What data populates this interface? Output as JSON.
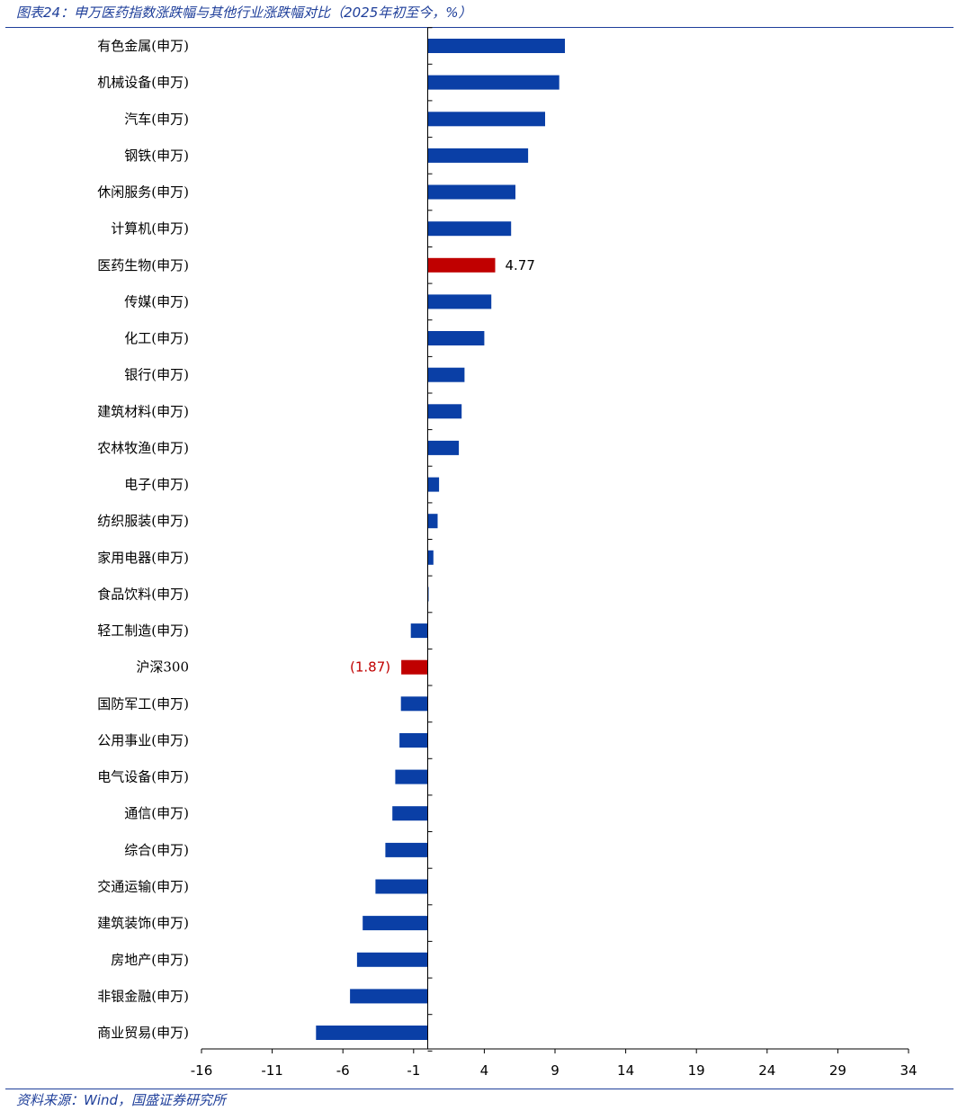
{
  "header": {
    "title": "图表24：申万医药指数涨跌幅与其他行业涨跌幅对比（2025年初至今，%）"
  },
  "footer": {
    "source": "资料来源：Wind，国盛证券研究所"
  },
  "colors": {
    "default_bar": "#0a3fa6",
    "highlight_bar": "#c00000",
    "frame": "#1f3f9a",
    "axis": "#000000"
  },
  "chart_data": {
    "type": "bar",
    "orientation": "horizontal",
    "categories": [
      "有色金属(申万)",
      "机械设备(申万)",
      "汽车(申万)",
      "钢铁(申万)",
      "休闲服务(申万)",
      "计算机(申万)",
      "医药生物(申万)",
      "传媒(申万)",
      "化工(申万)",
      "银行(申万)",
      "建筑材料(申万)",
      "农林牧渔(申万)",
      "电子(申万)",
      "纺织服装(申万)",
      "家用电器(申万)",
      "食品饮料(申万)",
      "轻工制造(申万)",
      "沪深300",
      "国防军工(申万)",
      "公用事业(申万)",
      "电气设备(申万)",
      "通信(申万)",
      "综合(申万)",
      "交通运输(申万)",
      "建筑装饰(申万)",
      "房地产(申万)",
      "非银金融(申万)",
      "商业贸易(申万)"
    ],
    "values": [
      9.7,
      9.3,
      8.3,
      7.1,
      6.2,
      5.9,
      4.77,
      4.5,
      4.0,
      2.6,
      2.4,
      2.2,
      0.8,
      0.7,
      0.4,
      0.05,
      -1.2,
      -1.87,
      -1.9,
      -2.0,
      -2.3,
      -2.5,
      -3.0,
      -3.7,
      -4.6,
      -5.0,
      -5.5,
      -7.9
    ],
    "highlight": [
      "医药生物(申万)",
      "沪深300"
    ],
    "data_labels": [
      {
        "category": "医药生物(申万)",
        "text": "4.77"
      },
      {
        "category": "沪深300",
        "text": "(1.87)"
      }
    ],
    "xlim": [
      -16,
      34
    ],
    "xticks": [
      "-16",
      "-11",
      "-6",
      "-1",
      "4",
      "9",
      "14",
      "19",
      "24",
      "29",
      "34"
    ],
    "xlabel": "",
    "ylabel": "",
    "grid": false,
    "legend": "none"
  }
}
